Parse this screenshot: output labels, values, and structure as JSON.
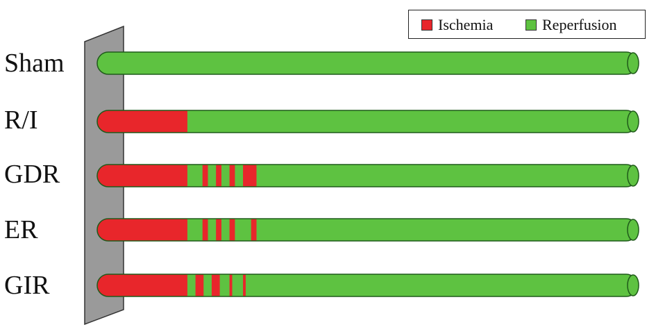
{
  "legend": {
    "ischemia_label": "Ischemia",
    "reperfusion_label": "Reperfusion"
  },
  "colors": {
    "ischemia": "#e8262b",
    "reperfusion": "#5ec241",
    "stroke": "#1f5a1a",
    "wall": "#9a9a9a"
  },
  "rows": [
    {
      "label": "Sham",
      "ischemia_segments": []
    },
    {
      "label": "R/I",
      "ischemia_segments": [
        [
          0,
          0.167
        ]
      ]
    },
    {
      "label": "GDR",
      "ischemia_segments": [
        [
          0,
          0.167
        ],
        [
          0.195,
          0.205
        ],
        [
          0.22,
          0.23
        ],
        [
          0.245,
          0.255
        ],
        [
          0.27,
          0.295
        ]
      ]
    },
    {
      "label": "ER",
      "ischemia_segments": [
        [
          0,
          0.167
        ],
        [
          0.195,
          0.205
        ],
        [
          0.22,
          0.23
        ],
        [
          0.245,
          0.255
        ],
        [
          0.285,
          0.295
        ]
      ]
    },
    {
      "label": "GIR",
      "ischemia_segments": [
        [
          0,
          0.167
        ],
        [
          0.182,
          0.197
        ],
        [
          0.212,
          0.227
        ],
        [
          0.245,
          0.25
        ],
        [
          0.27,
          0.275
        ]
      ]
    }
  ]
}
